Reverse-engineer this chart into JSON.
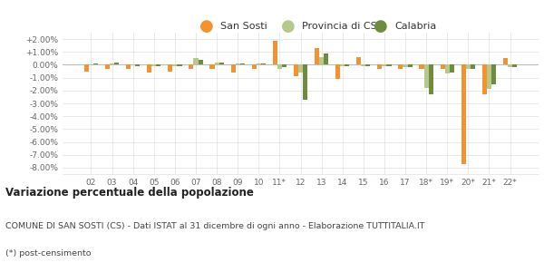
{
  "categories": [
    "02",
    "03",
    "04",
    "05",
    "06",
    "07",
    "08",
    "09",
    "10",
    "11*",
    "12",
    "13",
    "14",
    "15",
    "16",
    "17",
    "18*",
    "19*",
    "20*",
    "21*",
    "22*"
  ],
  "san_sosti": [
    -0.5,
    -0.3,
    -0.3,
    -0.6,
    -0.5,
    -0.3,
    -0.3,
    -0.6,
    -0.3,
    1.9,
    -0.9,
    1.3,
    -1.1,
    0.6,
    -0.3,
    -0.3,
    -0.3,
    -0.3,
    -7.7,
    -2.3,
    0.5
  ],
  "provincia_cs": [
    0.0,
    0.1,
    0.0,
    -0.1,
    -0.1,
    0.5,
    0.2,
    0.1,
    0.1,
    -0.3,
    -0.6,
    0.6,
    -0.1,
    -0.1,
    -0.1,
    -0.2,
    -1.8,
    -0.7,
    -0.3,
    -1.9,
    -0.2
  ],
  "calabria": [
    0.1,
    0.2,
    -0.1,
    -0.1,
    -0.1,
    0.4,
    0.2,
    0.1,
    0.1,
    -0.2,
    -2.7,
    0.9,
    -0.1,
    -0.1,
    -0.1,
    -0.2,
    -2.3,
    -0.6,
    -0.3,
    -1.5,
    -0.2
  ],
  "color_san_sosti": "#f5922f",
  "color_provincia": "#b5c98a",
  "color_calabria": "#6d8c3e",
  "title_bold": "Variazione percentuale della popolazione",
  "subtitle": "COMUNE DI SAN SOSTI (CS) - Dati ISTAT al 31 dicembre di ogni anno - Elaborazione TUTTITALIA.IT",
  "footnote": "(*) post-censimento",
  "ylim": [
    -8.5,
    2.5
  ],
  "yticks": [
    -8.0,
    -7.0,
    -6.0,
    -5.0,
    -4.0,
    -3.0,
    -2.0,
    -1.0,
    0.0,
    1.0,
    2.0
  ],
  "background_color": "#ffffff",
  "grid_color": "#e0e0e0",
  "legend_labels": [
    "San Sosti",
    "Provincia di CS",
    "Calabria"
  ]
}
